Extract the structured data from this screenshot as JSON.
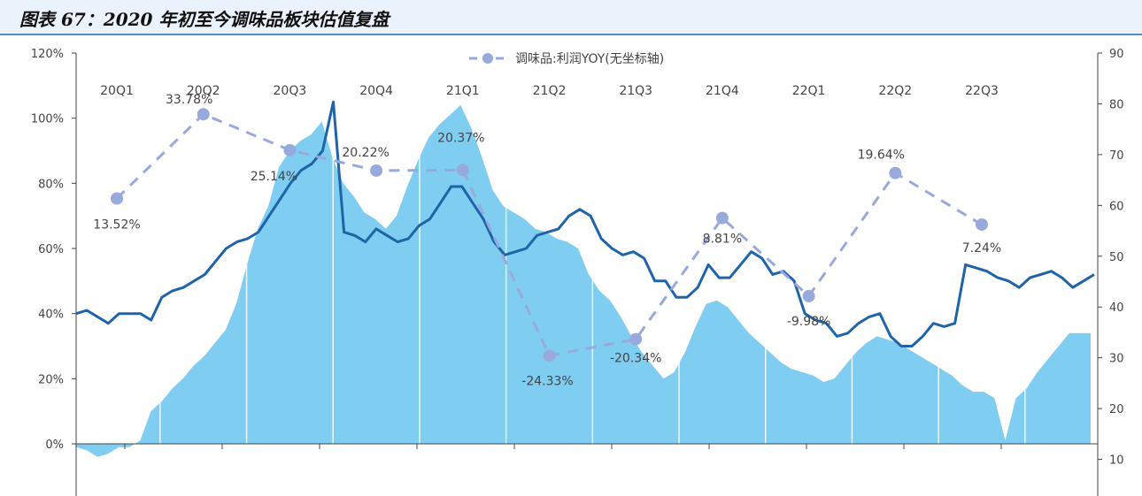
{
  "title": "图表 67：2020 年初至今调味品板块估值复盘",
  "chart_data": {
    "type": "line",
    "legend": {
      "label": "调味品:利润YOY(无坐标轴)",
      "placement": "top-center"
    },
    "left_axis": {
      "ticks": [
        "0%",
        "20%",
        "40%",
        "60%",
        "80%",
        "100%",
        "120%"
      ],
      "min": -15,
      "max": 120
    },
    "right_axis": {
      "ticks": [
        "10",
        "20",
        "30",
        "40",
        "50",
        "60",
        "70",
        "80",
        "90"
      ],
      "min": 0,
      "max": 90
    },
    "quarters": [
      "20Q1",
      "20Q2",
      "20Q3",
      "20Q4",
      "21Q1",
      "21Q2",
      "21Q3",
      "21Q4",
      "22Q1",
      "22Q2",
      "22Q3"
    ],
    "profit_yoy": {
      "labels": [
        "13.52%",
        "33.78%",
        "25.14%",
        "20.22%",
        "20.37%",
        "-24.33%",
        "-20.34%",
        "8.81%",
        "-9.98%",
        "19.64%",
        "7.24%"
      ],
      "values": [
        13.52,
        33.78,
        25.14,
        20.22,
        20.37,
        -24.33,
        -20.34,
        8.81,
        -9.98,
        19.64,
        7.24
      ],
      "color": "#98a9dc"
    },
    "valuation_line": {
      "color": "#1f63a8",
      "values": [
        40,
        41,
        39,
        37,
        40,
        40,
        40,
        38,
        45,
        47,
        48,
        50,
        52,
        56,
        60,
        62,
        63,
        65,
        70,
        75,
        80,
        84,
        86,
        90,
        105,
        65,
        64,
        62,
        66,
        64,
        62,
        63,
        67,
        69,
        74,
        79,
        79,
        74,
        69,
        62,
        58,
        59,
        60,
        64,
        65,
        66,
        70,
        72,
        70,
        63,
        60,
        58,
        59,
        57,
        50,
        50,
        45,
        45,
        48,
        55,
        51,
        51,
        55,
        59,
        57,
        52,
        53,
        50,
        40,
        38,
        37,
        33,
        34,
        37,
        39,
        40,
        33,
        30,
        30,
        33,
        37,
        36,
        37,
        55,
        54,
        53,
        51,
        50,
        48,
        51,
        52,
        53,
        51,
        48,
        50,
        52
      ]
    },
    "pe_area": {
      "color": "#7fcdf0",
      "values": [
        -1,
        -2,
        -4,
        -3,
        -1,
        -1,
        1,
        10,
        13,
        17,
        20,
        24,
        27,
        31,
        35,
        43,
        55,
        66,
        73,
        85,
        90,
        93,
        95,
        99,
        88,
        80,
        76,
        71,
        69,
        66,
        70,
        79,
        87,
        94,
        98,
        101,
        104,
        97,
        88,
        78,
        73,
        71,
        69,
        66,
        65,
        63,
        62,
        60,
        52,
        47,
        44,
        39,
        33,
        28,
        24,
        20,
        22,
        28,
        36,
        43,
        44,
        42,
        38,
        34,
        31,
        28,
        25,
        23,
        22,
        21,
        19,
        20,
        24,
        28,
        31,
        33,
        32,
        31,
        29,
        27,
        25,
        23,
        21,
        18,
        16,
        16,
        14,
        1,
        14,
        17,
        22,
        26,
        30,
        34,
        34,
        34
      ]
    }
  }
}
